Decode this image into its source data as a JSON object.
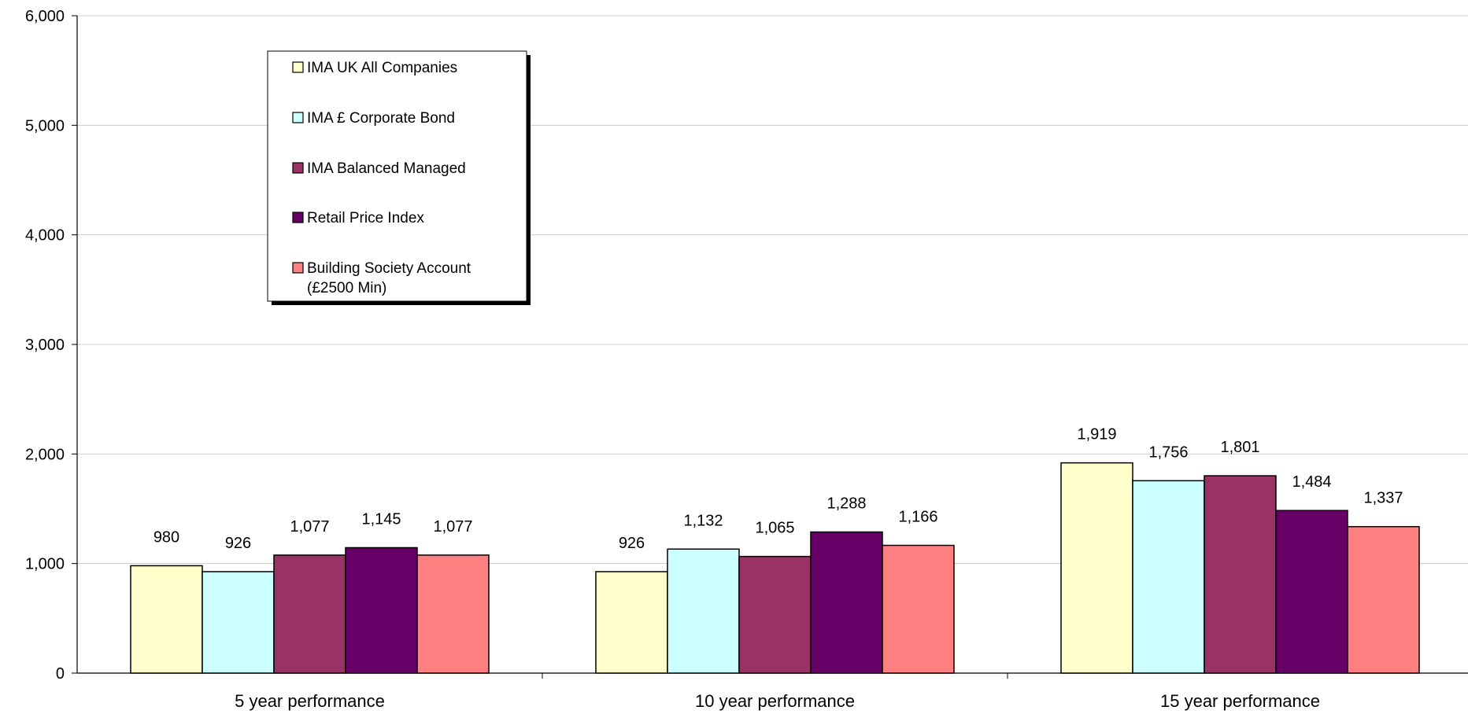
{
  "chart_data": {
    "type": "bar",
    "categories": [
      "5 year performance",
      "10 year performance",
      "15 year performance"
    ],
    "series": [
      {
        "name": "IMA UK All Companies",
        "color": "#FFFFCC",
        "values": [
          980,
          926,
          1919
        ],
        "labels": [
          "980",
          "926",
          "1,919"
        ]
      },
      {
        "name": "IMA £ Corporate Bond",
        "color": "#CCFFFF",
        "values": [
          926,
          1132,
          1756
        ],
        "labels": [
          "926",
          "1,132",
          "1,756"
        ]
      },
      {
        "name": "IMA Balanced Managed",
        "color": "#993366",
        "values": [
          1077,
          1065,
          1801
        ],
        "labels": [
          "1,077",
          "1,065",
          "1,801"
        ]
      },
      {
        "name": "Retail Price Index",
        "color": "#660066",
        "values": [
          1145,
          1288,
          1484
        ],
        "labels": [
          "1,145",
          "1,288",
          "1,484"
        ]
      },
      {
        "name": "Building Society Account (£2500 Min)",
        "name_lines": [
          "Building Society Account",
          "(£2500 Min)"
        ],
        "color": "#FF8080",
        "values": [
          1077,
          1166,
          1337
        ],
        "labels": [
          "1,077",
          "1,166",
          "1,337"
        ]
      }
    ],
    "y_ticks": [
      "0",
      "1,000",
      "2,000",
      "3,000",
      "4,000",
      "5,000",
      "6,000"
    ],
    "ylim": [
      0,
      6000
    ],
    "grid": true,
    "legend_position": "top-left",
    "title": "",
    "xlabel": "",
    "ylabel": ""
  }
}
